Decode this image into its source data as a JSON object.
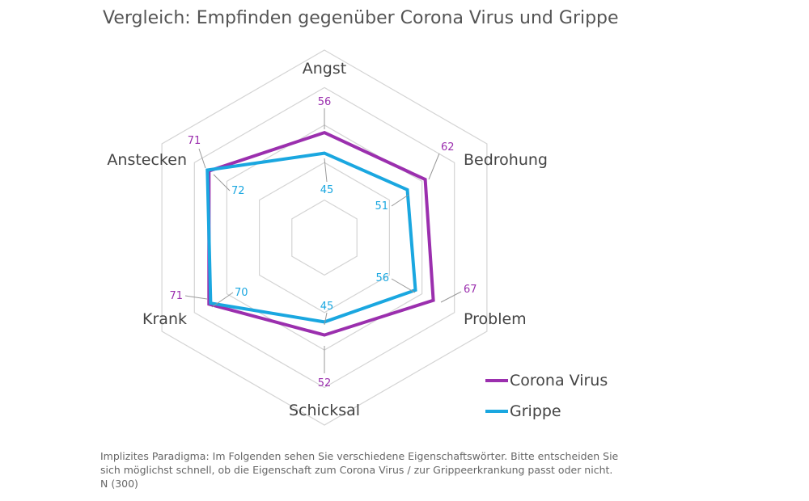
{
  "title": "Vergleich: Empfinden gegenüber Corona Virus und Grippe",
  "chart_data": {
    "type": "radar",
    "categories": [
      "Angst",
      "Bedrohung",
      "Problem",
      "Schicksal",
      "Krank",
      "Anstecken"
    ],
    "series": [
      {
        "name": "Corona Virus",
        "values": [
          56,
          62,
          67,
          52,
          71,
          71
        ],
        "color": "#9b2fae"
      },
      {
        "name": "Grippe",
        "values": [
          45,
          51,
          56,
          45,
          70,
          72
        ],
        "color": "#1aa7e0"
      }
    ],
    "rlim": [
      0,
      100
    ],
    "grid": true,
    "legend": "bottom-right"
  },
  "legend": {
    "corona_label": "Corona Virus",
    "grippe_label": "Grippe"
  },
  "footnote": {
    "line1": "Implizites Paradigma: Im Folgenden sehen Sie verschiedene Eigenschaftswörter. Bitte entscheiden Sie",
    "line2": "sich möglichst schnell, ob die Eigenschaft zum Corona Virus / zur Grippeerkrankung passt oder nicht.",
    "line3": "N (300)"
  }
}
